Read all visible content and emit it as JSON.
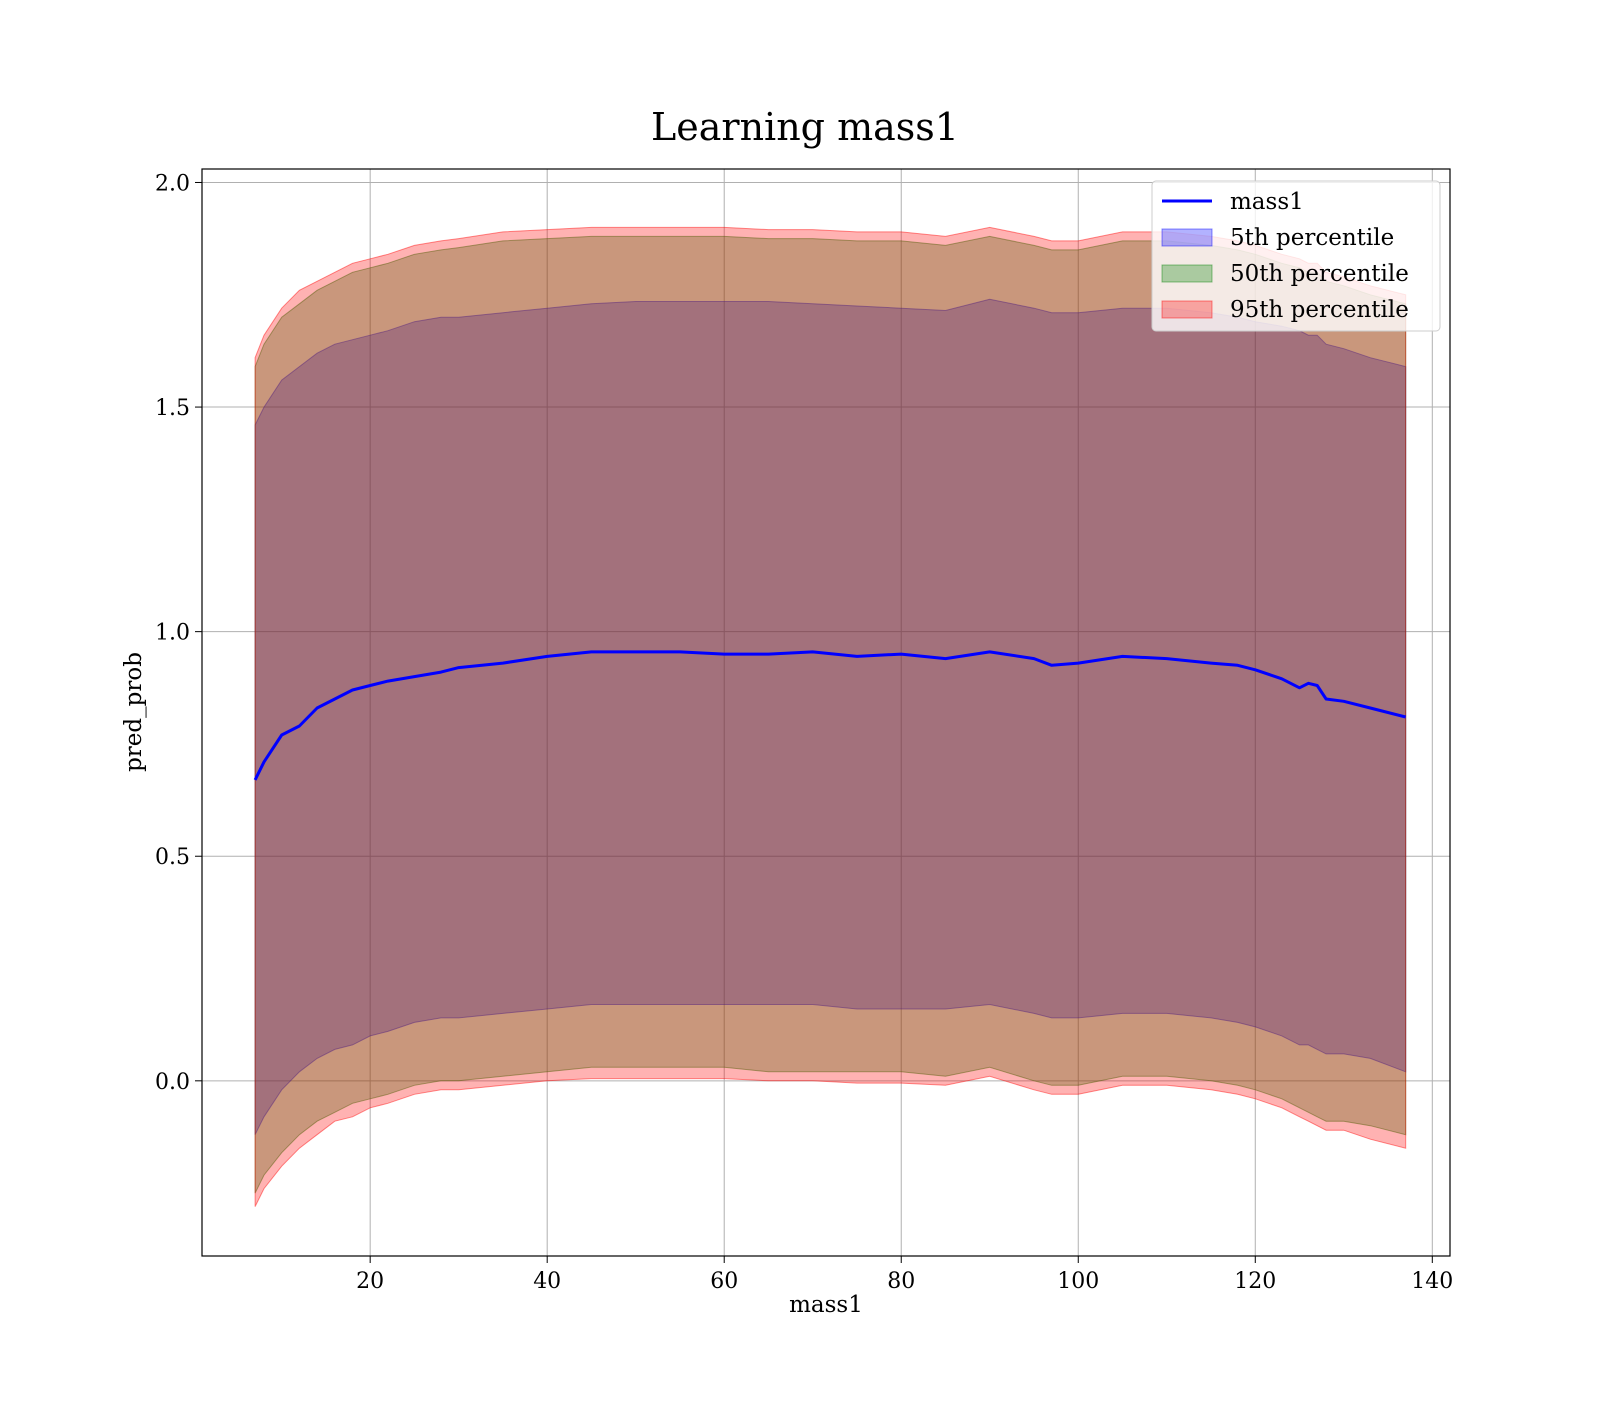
{
  "chart_data": {
    "type": "area",
    "title": "Learning mass1",
    "xlabel": "mass1",
    "ylabel": "pred_prob",
    "xlim": [
      1,
      142
    ],
    "ylim": [
      -0.39,
      2.03
    ],
    "xticks": [
      20,
      40,
      60,
      80,
      100,
      120,
      140
    ],
    "yticks": [
      0.0,
      0.5,
      1.0,
      1.5,
      2.0
    ],
    "xtick_labels": [
      "20",
      "40",
      "60",
      "80",
      "100",
      "120",
      "140"
    ],
    "ytick_labels": [
      "0.0",
      "0.5",
      "1.0",
      "1.5",
      "2.0"
    ],
    "grid": true,
    "legend_position": "top-right",
    "x": [
      7,
      8,
      10,
      12,
      14,
      16,
      18,
      20,
      22,
      25,
      28,
      30,
      35,
      40,
      45,
      50,
      55,
      60,
      65,
      70,
      75,
      80,
      85,
      90,
      95,
      97,
      100,
      105,
      110,
      115,
      118,
      120,
      123,
      125,
      126,
      127,
      128,
      130,
      133,
      137
    ],
    "line": {
      "name": "mass1",
      "color": "#0000ff",
      "values": [
        0.67,
        0.71,
        0.77,
        0.79,
        0.83,
        0.85,
        0.87,
        0.88,
        0.89,
        0.9,
        0.91,
        0.92,
        0.93,
        0.945,
        0.955,
        0.955,
        0.955,
        0.95,
        0.95,
        0.955,
        0.945,
        0.95,
        0.94,
        0.955,
        0.94,
        0.925,
        0.93,
        0.945,
        0.94,
        0.93,
        0.925,
        0.915,
        0.895,
        0.875,
        0.885,
        0.88,
        0.85,
        0.845,
        0.83,
        0.81
      ]
    },
    "bands": [
      {
        "name": "5th percentile",
        "color": "#0000ff",
        "opacity": 0.3,
        "upper": [
          1.46,
          1.5,
          1.56,
          1.59,
          1.62,
          1.64,
          1.65,
          1.66,
          1.67,
          1.69,
          1.7,
          1.7,
          1.71,
          1.72,
          1.73,
          1.735,
          1.735,
          1.735,
          1.735,
          1.73,
          1.725,
          1.72,
          1.715,
          1.74,
          1.72,
          1.71,
          1.71,
          1.72,
          1.72,
          1.71,
          1.7,
          1.69,
          1.68,
          1.67,
          1.66,
          1.66,
          1.64,
          1.63,
          1.61,
          1.59
        ],
        "lower": [
          -0.12,
          -0.08,
          -0.02,
          0.02,
          0.05,
          0.07,
          0.08,
          0.1,
          0.11,
          0.13,
          0.14,
          0.14,
          0.15,
          0.16,
          0.17,
          0.17,
          0.17,
          0.17,
          0.17,
          0.17,
          0.16,
          0.16,
          0.16,
          0.17,
          0.15,
          0.14,
          0.14,
          0.15,
          0.15,
          0.14,
          0.13,
          0.12,
          0.1,
          0.08,
          0.08,
          0.07,
          0.06,
          0.06,
          0.05,
          0.02
        ]
      },
      {
        "name": "50th percentile",
        "color": "#008000",
        "opacity": 0.3,
        "upper": [
          1.59,
          1.64,
          1.7,
          1.73,
          1.76,
          1.78,
          1.8,
          1.81,
          1.82,
          1.84,
          1.85,
          1.855,
          1.87,
          1.875,
          1.88,
          1.88,
          1.88,
          1.88,
          1.875,
          1.875,
          1.87,
          1.87,
          1.86,
          1.88,
          1.86,
          1.85,
          1.85,
          1.87,
          1.87,
          1.86,
          1.85,
          1.84,
          1.82,
          1.81,
          1.8,
          1.8,
          1.78,
          1.77,
          1.75,
          1.73
        ],
        "lower": [
          -0.25,
          -0.21,
          -0.16,
          -0.12,
          -0.09,
          -0.07,
          -0.05,
          -0.04,
          -0.03,
          -0.01,
          0.0,
          0.0,
          0.01,
          0.02,
          0.03,
          0.03,
          0.03,
          0.03,
          0.02,
          0.02,
          0.02,
          0.02,
          0.01,
          0.03,
          0.0,
          -0.01,
          -0.01,
          0.01,
          0.01,
          0.0,
          -0.01,
          -0.02,
          -0.04,
          -0.06,
          -0.07,
          -0.08,
          -0.09,
          -0.09,
          -0.1,
          -0.12
        ]
      },
      {
        "name": "95th percentile",
        "color": "#ff0000",
        "opacity": 0.3,
        "upper": [
          1.61,
          1.66,
          1.72,
          1.76,
          1.78,
          1.8,
          1.82,
          1.83,
          1.84,
          1.86,
          1.87,
          1.875,
          1.89,
          1.895,
          1.9,
          1.9,
          1.9,
          1.9,
          1.895,
          1.895,
          1.89,
          1.89,
          1.88,
          1.9,
          1.88,
          1.87,
          1.87,
          1.89,
          1.89,
          1.88,
          1.87,
          1.86,
          1.84,
          1.83,
          1.82,
          1.82,
          1.8,
          1.79,
          1.77,
          1.75
        ],
        "lower": [
          -0.28,
          -0.24,
          -0.19,
          -0.15,
          -0.12,
          -0.09,
          -0.08,
          -0.06,
          -0.05,
          -0.03,
          -0.02,
          -0.02,
          -0.01,
          0.0,
          0.005,
          0.005,
          0.005,
          0.005,
          0.0,
          0.0,
          -0.005,
          -0.005,
          -0.01,
          0.01,
          -0.02,
          -0.03,
          -0.03,
          -0.01,
          -0.01,
          -0.02,
          -0.03,
          -0.04,
          -0.06,
          -0.08,
          -0.09,
          -0.1,
          -0.11,
          -0.11,
          -0.13,
          -0.15
        ]
      }
    ],
    "legend": [
      {
        "label": "mass1",
        "kind": "line",
        "color": "#0000ff"
      },
      {
        "label": "5th percentile",
        "kind": "patch",
        "color": "#0000ff"
      },
      {
        "label": "50th percentile",
        "kind": "patch",
        "color": "#008000"
      },
      {
        "label": "95th percentile",
        "kind": "patch",
        "color": "#ff0000"
      }
    ]
  }
}
